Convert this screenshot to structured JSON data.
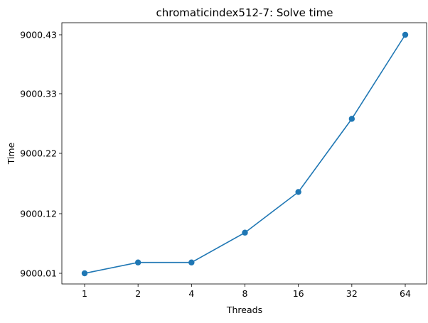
{
  "chart_data": {
    "type": "line",
    "title": "chromaticindex512-7: Solve time",
    "xlabel": "Threads",
    "ylabel": "Time",
    "x_scale": "log2",
    "x": [
      1,
      2,
      4,
      8,
      16,
      32,
      64
    ],
    "x_tick_labels": [
      "1",
      "2",
      "4",
      "8",
      "16",
      "32",
      "64"
    ],
    "y_ticks": [
      9000.01,
      9000.12,
      9000.22,
      9000.33,
      9000.43
    ],
    "y_tick_labels": [
      "9000.01",
      "9000.12",
      "9000.22",
      "9000.33",
      "9000.43"
    ],
    "ylim": [
      9000.0,
      9000.45
    ],
    "series": [
      {
        "values": [
          9000.01,
          9000.03,
          9000.03,
          9000.085,
          9000.16,
          9000.295,
          9000.45
        ],
        "color": "#1f77b4",
        "marker": "circle"
      }
    ],
    "legend": "none",
    "grid": false
  }
}
